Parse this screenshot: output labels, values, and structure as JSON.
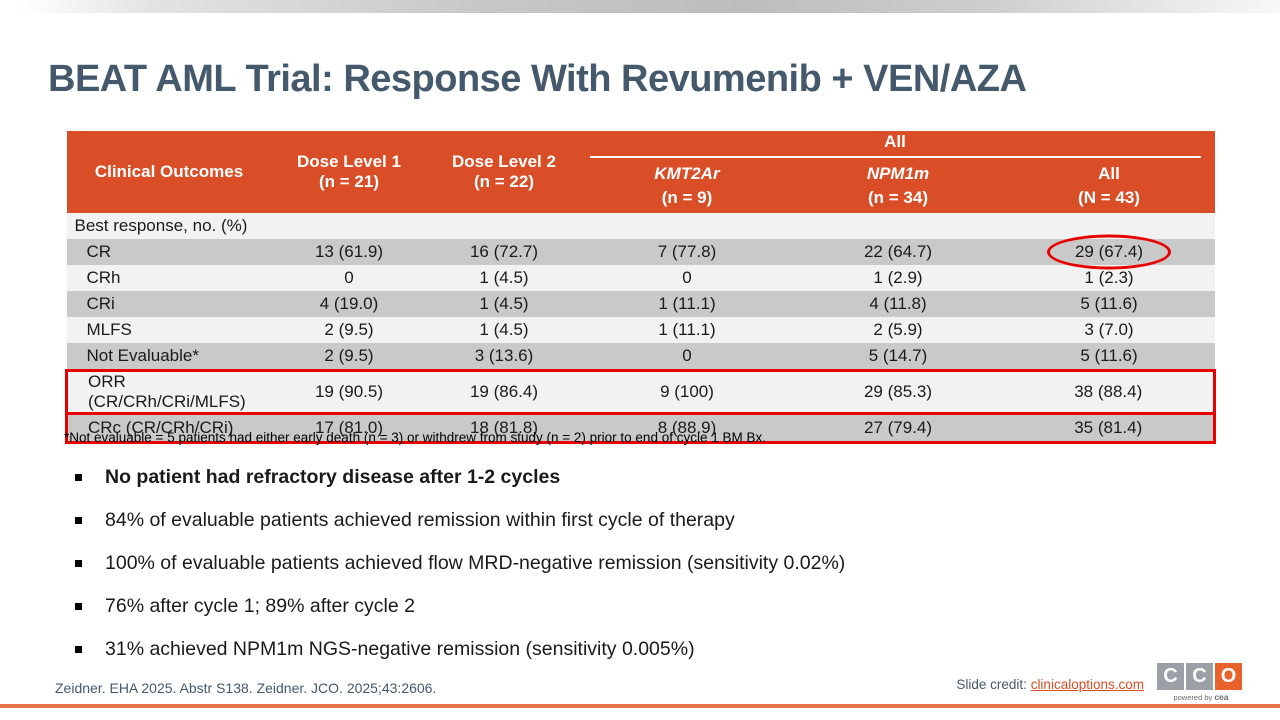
{
  "slide": {
    "title": "BEAT AML Trial: Response With Revumenib + VEN/AZA",
    "footnote": "*Not evaluable = 5 patients had either early death (n = 3) or withdrew from study (n = 2) prior to end of cycle 1 BM Bx.",
    "reference": "Zeidner. EHA 2025. Abstr S138. Zeidner. JCO. 2025;43:2606.",
    "credit_label": "Slide credit: ",
    "credit_link": "clinicaloptions.com"
  },
  "table": {
    "header": {
      "outcomes": "Clinical Outcomes",
      "dose1_line1": "Dose Level 1",
      "dose1_line2": "(n = 21)",
      "dose2_line1": "Dose Level 2",
      "dose2_line2": "(n = 22)",
      "all_group": "All",
      "sub1_name": "KMT2Ar",
      "sub1_n": "(n = 9)",
      "sub2_name": "NPM1m",
      "sub2_n": "(n = 34)",
      "sub3_name": "All",
      "sub3_n": "(N = 43)"
    },
    "rows": [
      {
        "label": "Best response, no. (%)",
        "section": true
      },
      {
        "label": "CR",
        "values": [
          "13 (61.9)",
          "16 (72.7)",
          "7 (77.8)",
          "22 (64.7)",
          "29 (67.4)"
        ],
        "circled_value_index": 4
      },
      {
        "label": "CRh",
        "values": [
          "0",
          "1 (4.5)",
          "0",
          "1 (2.9)",
          "1 (2.3)"
        ]
      },
      {
        "label": "CRi",
        "values": [
          "4 (19.0)",
          "1 (4.5)",
          "1 (11.1)",
          "4 (11.8)",
          "5 (11.6)"
        ]
      },
      {
        "label": "MLFS",
        "values": [
          "2 (9.5)",
          "1 (4.5)",
          "1 (11.1)",
          "2 (5.9)",
          "3 (7.0)"
        ]
      },
      {
        "label": "Not Evaluable*",
        "values": [
          "2 (9.5)",
          "3 (13.6)",
          "0",
          "5 (14.7)",
          "5 (11.6)"
        ]
      },
      {
        "label": "ORR (CR/CRh/CRi/MLFS)",
        "values": [
          "19 (90.5)",
          "19 (86.4)",
          "9 (100)",
          "29 (85.3)",
          "38 (88.4)"
        ],
        "boxed": true
      },
      {
        "label": "CRc (CR/CRh/CRi)",
        "values": [
          "17 (81.0)",
          "18 (81.8)",
          "8 (88.9)",
          "27 (79.4)",
          "35 (81.4)"
        ],
        "boxed": true
      }
    ]
  },
  "bullets": [
    {
      "text": "No patient had refractory disease after 1-2 cycles",
      "bold": true
    },
    {
      "text": "84% of evaluable patients achieved remission within first cycle of therapy",
      "bold": false
    },
    {
      "text": "100% of evaluable patients achieved flow MRD-negative remission (sensitivity 0.02%)",
      "bold": false
    },
    {
      "text": "76% after cycle 1; 89% after cycle 2",
      "bold": false
    },
    {
      "text": "31% achieved NPM1m NGS-negative remission (sensitivity 0.005%)",
      "bold": false
    }
  ],
  "logo": {
    "letters": [
      "C",
      "C",
      "O"
    ],
    "tagline_prefix": "powered by ",
    "tagline_brand": "cea"
  },
  "colors": {
    "header_orange": "#d94e27",
    "title_slate": "#44596b",
    "row_gray": "#c9c9c9",
    "row_light": "#f2f2f2",
    "annotation_red": "#e60000",
    "bottom_line_salmon": "#e8724c",
    "logo_gray": "#9aa0a6",
    "logo_orange": "#e8622c"
  }
}
